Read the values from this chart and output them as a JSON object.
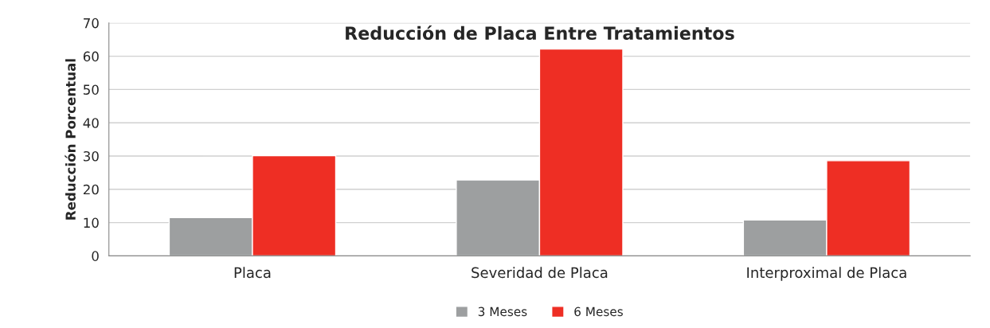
{
  "chart_data": {
    "type": "bar",
    "title": "Reducción de Placa Entre Tratamientos",
    "ylabel": "Reducción Porcentual",
    "categories": [
      "Placa",
      "Severidad de Placa",
      "Interproximal de Placa"
    ],
    "series": [
      {
        "name": "3 Meses",
        "color": "#9d9fa0",
        "values": [
          11.5,
          22.8,
          10.8
        ]
      },
      {
        "name": "6 Meses",
        "color": "#ee2e24",
        "values": [
          30.1,
          62.2,
          28.6
        ]
      }
    ],
    "ylim": [
      0,
      70
    ],
    "yticks": [
      0,
      10,
      20,
      30,
      40,
      50,
      60,
      70
    ],
    "grid": "y",
    "legend": "bottom"
  }
}
